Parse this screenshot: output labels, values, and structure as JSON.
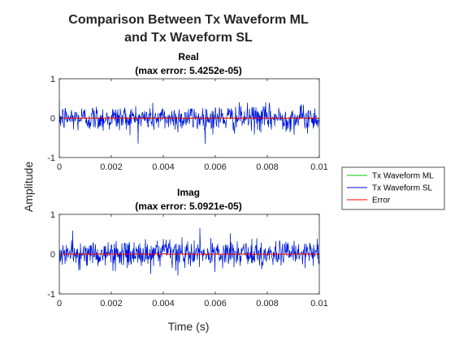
{
  "title_lines": [
    "Comparison Between Tx Waveform ML",
    "and Tx Waveform SL"
  ],
  "xlabel": "Time (s)",
  "ylabel": "Amplitude",
  "legend": {
    "placement": "right",
    "entries": [
      {
        "label": "Tx Waveform ML",
        "color": "#00cc00"
      },
      {
        "label": "Tx Waveform SL",
        "color": "#0000ff"
      },
      {
        "label": "Error",
        "color": "#ff0000"
      }
    ]
  },
  "chart_data": [
    {
      "type": "line",
      "title": [
        "Real",
        "(max error: 5.4252e-05)"
      ],
      "xlim": [
        0,
        0.01
      ],
      "ylim": [
        -1,
        1
      ],
      "xticks": [
        0,
        0.002,
        0.004,
        0.006,
        0.008,
        0.01
      ],
      "xticklabels": [
        "0",
        "0.002",
        "0.004",
        "0.006",
        "0.008",
        "0.01"
      ],
      "yticks": [
        -1,
        0,
        1
      ],
      "yticklabels": [
        "-1",
        "0",
        "1"
      ],
      "grid": false,
      "series": [
        {
          "name": "Tx Waveform ML",
          "color": "#00cc00",
          "description": "noise-like waveform, typical amplitude about ±0.4, peaks near ±0.65",
          "typical_amplitude": 0.4,
          "peak_amplitude": 0.65
        },
        {
          "name": "Tx Waveform SL",
          "color": "#0000ff",
          "description": "overlays Tx Waveform ML exactly",
          "typical_amplitude": 0.4,
          "peak_amplitude": 0.65
        },
        {
          "name": "Error",
          "color": "#ff0000",
          "description": "near zero, max error 5.4252e-05",
          "max": 5.4252e-05
        }
      ]
    },
    {
      "type": "line",
      "title": [
        "Imag",
        "(max error: 5.0921e-05)"
      ],
      "xlim": [
        0,
        0.01
      ],
      "ylim": [
        -1,
        1
      ],
      "xticks": [
        0,
        0.002,
        0.004,
        0.006,
        0.008,
        0.01
      ],
      "xticklabels": [
        "0",
        "0.002",
        "0.004",
        "0.006",
        "0.008",
        "0.01"
      ],
      "yticks": [
        -1,
        0,
        1
      ],
      "yticklabels": [
        "-1",
        "0",
        "1"
      ],
      "grid": false,
      "series": [
        {
          "name": "Tx Waveform ML",
          "color": "#00cc00",
          "description": "noise-like waveform, typical amplitude about ±0.4, peaks near ±0.65",
          "typical_amplitude": 0.4,
          "peak_amplitude": 0.65
        },
        {
          "name": "Tx Waveform SL",
          "color": "#0000ff",
          "description": "overlays Tx Waveform ML exactly",
          "typical_amplitude": 0.4,
          "peak_amplitude": 0.65
        },
        {
          "name": "Error",
          "color": "#ff0000",
          "description": "near zero, max error 5.0921e-05",
          "max": 5.0921e-05
        }
      ]
    }
  ]
}
